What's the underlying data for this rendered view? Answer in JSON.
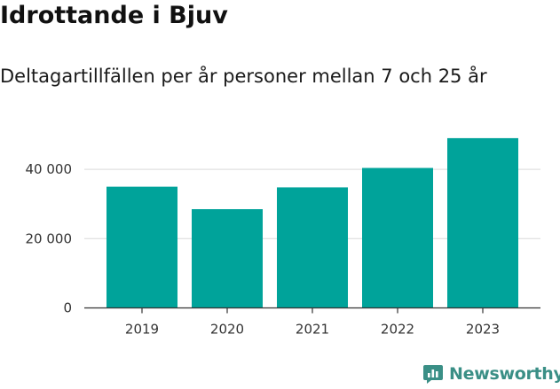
{
  "header": {
    "title": "Idrottande i Bjuv",
    "subtitle": "Deltagartillfällen per år personer mellan 7 och 25 år"
  },
  "branding": {
    "logo_text": "Newsworthy",
    "logo_icon": "bar-chart-speech-bubble-icon",
    "logo_color": "#3a8f86"
  },
  "chart_data": {
    "type": "bar",
    "categories": [
      "2019",
      "2020",
      "2021",
      "2022",
      "2023"
    ],
    "values": [
      35000,
      28500,
      34800,
      40400,
      49000
    ],
    "ylim": [
      0,
      50000
    ],
    "yticks": [
      0,
      20000,
      40000
    ],
    "ytick_labels": [
      "0",
      "20 000",
      "40 000"
    ],
    "bar_color": "#00a39a",
    "grid": true,
    "xlabel": "",
    "ylabel": ""
  }
}
